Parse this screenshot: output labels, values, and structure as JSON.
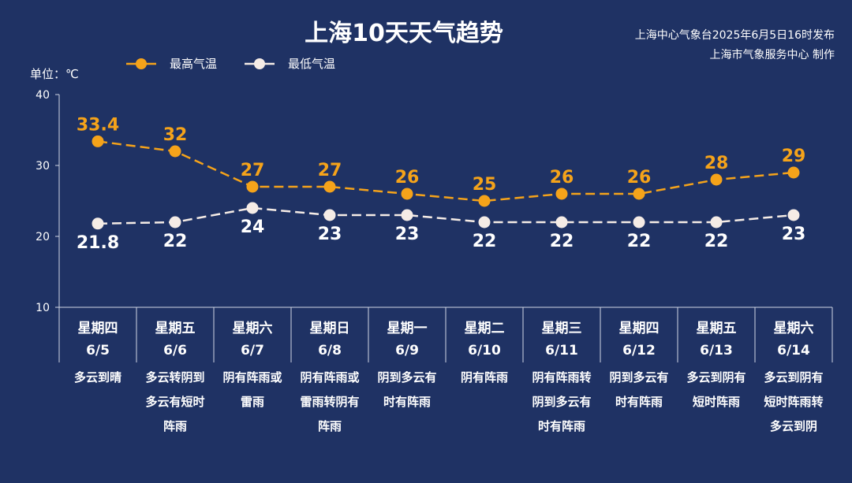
{
  "colors": {
    "background": "#1f3264",
    "high": "#f5a31a",
    "low": "#f5ece6",
    "text": "#ffffff",
    "axis": "#d0d6e4"
  },
  "header": {
    "title": "上海10天天气趋势",
    "source_line1": "上海中心气象台2025年6月5日16时发布",
    "source_line2": "上海市气象服务中心 制作",
    "unit_label": "单位：℃"
  },
  "chart_data": {
    "type": "line",
    "title": "上海10天天气趋势",
    "ylabel": "单位：℃",
    "ylim": [
      10,
      40
    ],
    "yticks": [
      10,
      20,
      30,
      40
    ],
    "legend_position": "top-left",
    "grid": false,
    "categories": [
      "6/5",
      "6/6",
      "6/7",
      "6/8",
      "6/9",
      "6/10",
      "6/11",
      "6/12",
      "6/13",
      "6/14"
    ],
    "weekdays": [
      "星期四",
      "星期五",
      "星期六",
      "星期日",
      "星期一",
      "星期二",
      "星期三",
      "星期四",
      "星期五",
      "星期六"
    ],
    "weather": [
      [
        "多云到晴"
      ],
      [
        "多云转阴到",
        "多云有短时",
        "阵雨"
      ],
      [
        "阴有阵雨或",
        "雷雨"
      ],
      [
        "阴有阵雨或",
        "雷雨转阴有",
        "阵雨"
      ],
      [
        "阴到多云有",
        "时有阵雨"
      ],
      [
        "阴有阵雨"
      ],
      [
        "阴有阵雨转",
        "阴到多云有",
        "时有阵雨"
      ],
      [
        "阴到多云有",
        "时有阵雨"
      ],
      [
        "多云到阴有",
        "短时阵雨"
      ],
      [
        "多云到阴有",
        "短时阵雨转",
        "多云到阴"
      ]
    ],
    "series": [
      {
        "name": "最高气温",
        "color": "#f5a31a",
        "values": [
          33.4,
          32,
          27,
          27,
          26,
          25,
          26,
          26,
          28,
          29
        ],
        "labels": [
          "33.4",
          "32",
          "27",
          "27",
          "26",
          "25",
          "26",
          "26",
          "28",
          "29"
        ]
      },
      {
        "name": "最低气温",
        "color": "#f5ece6",
        "values": [
          21.8,
          22,
          24,
          23,
          23,
          22,
          22,
          22,
          22,
          23
        ],
        "labels": [
          "21.8",
          "22",
          "24",
          "23",
          "23",
          "22",
          "22",
          "22",
          "22",
          "23"
        ]
      }
    ]
  }
}
